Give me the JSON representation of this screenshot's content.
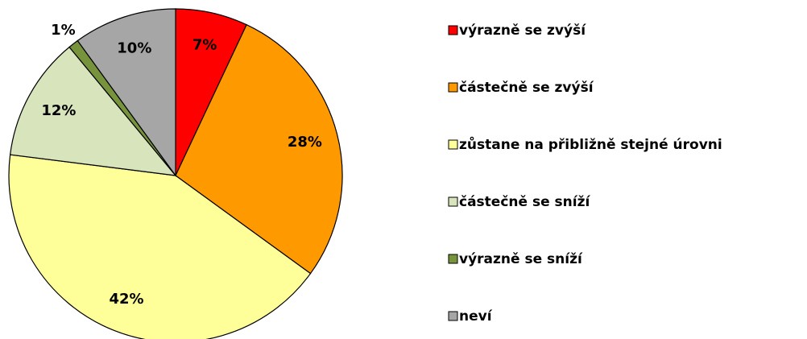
{
  "chart_data": {
    "type": "pie",
    "categories": [
      "výrazně se zvýší",
      "částečně se zvýší",
      "zůstane na přibližně stejné úrovni",
      "částečně se sníží",
      "výrazně se sníží",
      "neví"
    ],
    "values": [
      7,
      28,
      42,
      12,
      1,
      10
    ],
    "value_labels": [
      "7%",
      "28%",
      "42%",
      "12%",
      "1%",
      "10%"
    ],
    "colors": [
      "#ff0000",
      "#ff9900",
      "#ffff99",
      "#d8e4bc",
      "#77933c",
      "#a6a6a6"
    ],
    "legend": "right"
  }
}
